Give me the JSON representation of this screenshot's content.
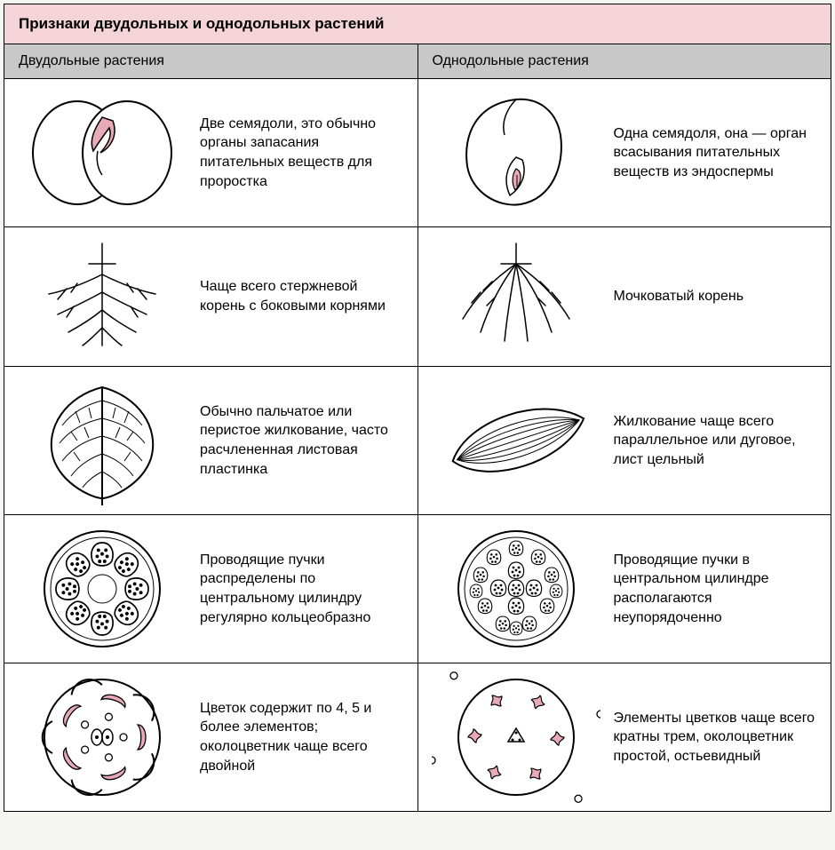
{
  "title": "Признаки двудольных и однодольных растений",
  "title_bg": "#f4d4d9",
  "header_bg": "#c8c8c8",
  "colors": {
    "stroke": "#000000",
    "pink_fill": "#e9aab8",
    "pink_dark": "#d47a8f",
    "bg": "#ffffff",
    "gray_fill": "#b0b0b0"
  },
  "columns": {
    "left": "Двудольные растения",
    "right": "Однодольные растения"
  },
  "rows": [
    {
      "left_text": "Две семядоли, это обычно органы запасания питательных веществ для проростка",
      "right_text": "Одна семядоля, она — орган всасывания питательных веществ из эндоспермы",
      "left_icon": "dicot-seed",
      "right_icon": "monocot-seed"
    },
    {
      "left_text": "Чаще всего стержневой корень с боковыми корнями",
      "right_text": "Мочковатый корень",
      "left_icon": "taproot",
      "right_icon": "fibrous-root"
    },
    {
      "left_text": "Обычно пальчатое или перистое жилкование, часто расчлененная листовая пластинка",
      "right_text": "Жилкование чаще всего параллельное или дуговое, лист цельный",
      "left_icon": "reticulate-leaf",
      "right_icon": "parallel-leaf"
    },
    {
      "left_text": "Проводящие пучки распределены по центральному цилиндру регулярно кольцеобразно",
      "right_text": "Проводящие пучки в центральном цилиндре располагаются неупорядоченно",
      "left_icon": "dicot-stem",
      "right_icon": "monocot-stem"
    },
    {
      "left_text": "Цветок содержит по 4, 5 и более элементов; околоцветник чаще всего двойной",
      "right_text": "Элементы цветков чаще всего кратны трем, околоцветник простой, остьевидный",
      "left_icon": "dicot-flower",
      "right_icon": "monocot-flower"
    }
  ]
}
